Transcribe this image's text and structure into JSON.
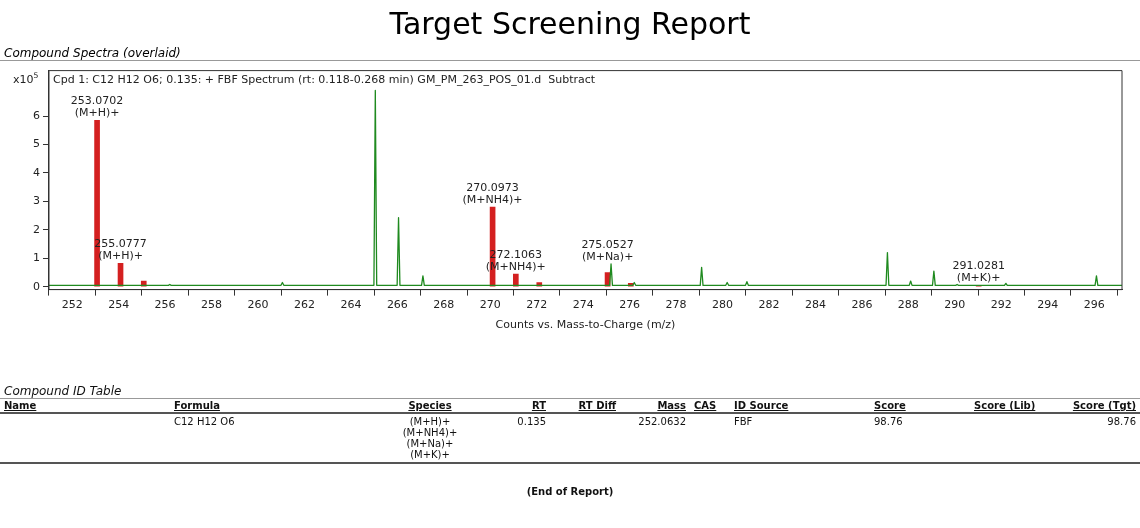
{
  "chart_data": [
    {
      "type": "line",
      "title": "Target Screening Report",
      "subtitle": "Compound Spectra (overlaid)",
      "xlabel": "Counts vs. Mass-to-Charge (m/z)",
      "ylabel": "x10$^{5}$",
      "xlim": [
        251,
        297.2
      ],
      "xticks": [
        252,
        254,
        256,
        258,
        260,
        262,
        264,
        266,
        268,
        270,
        272,
        274,
        276,
        278,
        280,
        282,
        284,
        286,
        288,
        290,
        292,
        294,
        296
      ],
      "ylim": [
        -0.1,
        7.6
      ],
      "yticks": [
        0,
        1,
        2,
        3,
        4,
        5,
        6
      ],
      "grid": false,
      "legend": false,
      "marker": "none",
      "series": [
        {
          "type": "line",
          "color": "#1f8a1f",
          "x": [
            251,
            256.14,
            256.2,
            256.26,
            260.99,
            261.05,
            261.11,
            264.99,
            265.05,
            265.11,
            265.99,
            266.05,
            266.11,
            267.04,
            267.1,
            267.16,
            275.14,
            275.2,
            275.26,
            276.14,
            276.2,
            276.26,
            279.04,
            279.1,
            279.16,
            280.14,
            280.2,
            280.26,
            280.99,
            281.05,
            281.11,
            287.04,
            287.1,
            287.16,
            288.04,
            288.1,
            288.16,
            289.04,
            289.1,
            289.16,
            290.04,
            290.1,
            290.16,
            292.14,
            292.2,
            292.26,
            296.04,
            296.1,
            296.16,
            297.2
          ],
          "values": [
            0.05,
            0.05,
            0.08,
            0.05,
            0.05,
            0.15,
            0.05,
            0.05,
            6.9,
            0.05,
            0.05,
            2.43,
            0.05,
            0.05,
            0.38,
            0.05,
            0.05,
            0.8,
            0.05,
            0.05,
            0.15,
            0.05,
            0.05,
            0.68,
            0.05,
            0.05,
            0.15,
            0.05,
            0.05,
            0.18,
            0.05,
            0.05,
            1.2,
            0.05,
            0.05,
            0.2,
            0.05,
            0.05,
            0.55,
            0.05,
            0.05,
            0.08,
            0.05,
            0.05,
            0.12,
            0.05,
            0.05,
            0.38,
            0.05,
            0.05
          ]
        },
        {
          "type": "bar",
          "color": "#d42020",
          "x": [
            253.07,
            254.08,
            255.08,
            270.1,
            271.1,
            272.11,
            275.05,
            276.05,
            291.03
          ],
          "values": [
            5.85,
            0.82,
            0.2,
            2.8,
            0.45,
            0.15,
            0.5,
            0.12,
            0.05
          ]
        }
      ],
      "annotations": [
        "Cpd 1: C12 H12 O6; 0.135: + FBF Spectrum (rt: 0.118-0.268 min) GM_PM_263_POS_01.d  Subtract",
        {
          "text": "253.0702\n(M+H)+",
          "x": 253.0702,
          "y": 5.85
        },
        {
          "text": "255.0777\n(M+H)+",
          "x": 254.08,
          "y": 0.82
        },
        {
          "text": "270.0973\n(M+NH4)+",
          "x": 270.0973,
          "y": 2.8
        },
        {
          "text": "272.1063\n(M+NH4)+",
          "x": 271.1,
          "y": 0.45
        },
        {
          "text": "275.0527\n(M+Na)+",
          "x": 275.0527,
          "y": 0.8
        },
        {
          "text": "291.0281\n(M+K)+",
          "x": 291.03,
          "y": 0.05
        }
      ]
    },
    {
      "type": "other",
      "title": "Compound ID Table",
      "categories": [
        "Name",
        "Formula",
        "Species",
        "RT",
        "RT Diff",
        "Mass",
        "CAS",
        "ID Source",
        "Score",
        "Score (Lib)",
        "Score (Tgt)"
      ],
      "cell_labels": [
        [
          null,
          "C12 H12 O6",
          "(M+H)+\n(M+NH4)+\n(M+Na)+\n(M+K)+",
          "0.135",
          null,
          "252.0632",
          null,
          "FBF",
          "98.76",
          null,
          "98.76"
        ]
      ],
      "annotations": [
        "(End of Report)"
      ]
    }
  ]
}
